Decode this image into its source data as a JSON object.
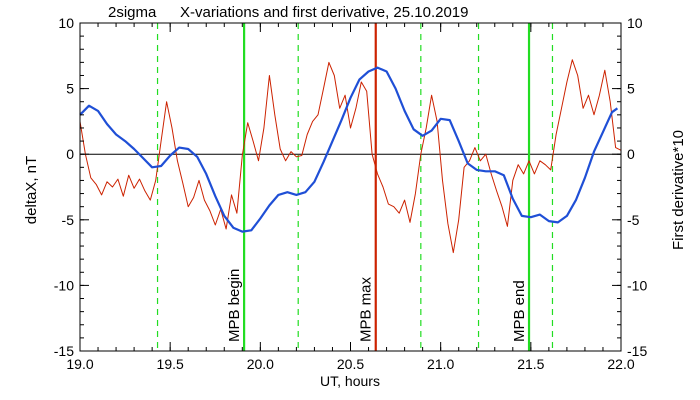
{
  "chart_data": {
    "type": "line",
    "header_left": "2sigma",
    "title": "X-variations and first derivative, 25.10.2019",
    "xlabel": "UT, hours",
    "ylabel_left": "deltaX, nT",
    "ylabel_right": "First derivative*10",
    "xlim": [
      19.0,
      22.0
    ],
    "ylim": [
      -15,
      10
    ],
    "x_ticks": [
      19.0,
      19.5,
      20.0,
      20.5,
      21.0,
      21.5,
      22.0
    ],
    "x_tick_labels": [
      "19.0",
      "19.5",
      "20.0",
      "20.5",
      "21.0",
      "21.5",
      "22.0"
    ],
    "y_ticks": [
      -15,
      -10,
      -5,
      0,
      5,
      10
    ],
    "y_tick_labels": [
      "-15",
      "-10",
      "-5",
      "0",
      "5",
      "10"
    ],
    "zero_line": 0,
    "colors": {
      "deltaX": "#1f4fd6",
      "derivative": "#cc2200",
      "mpb_max": "#cc2200",
      "mpb_bounds": "#22dd22",
      "sigma_lines": "#22dd22",
      "right_axis_label": "#cc2200",
      "left_axis_label": "#1f4fd6"
    },
    "vertical_markers": [
      {
        "x": 19.91,
        "label": "MPB begin",
        "kind": "mpb_bounds"
      },
      {
        "x": 20.64,
        "label": "MPB max",
        "kind": "mpb_max"
      },
      {
        "x": 21.49,
        "label": "MPB end",
        "kind": "mpb_bounds"
      }
    ],
    "sigma_lines_x": [
      19.43,
      20.21,
      20.89,
      21.21,
      21.62
    ],
    "series": [
      {
        "name": "deltaX",
        "axis": "left",
        "x": [
          19.0,
          19.05,
          19.1,
          19.15,
          19.2,
          19.25,
          19.3,
          19.35,
          19.4,
          19.45,
          19.5,
          19.55,
          19.6,
          19.65,
          19.7,
          19.75,
          19.8,
          19.85,
          19.9,
          19.95,
          20.0,
          20.05,
          20.1,
          20.15,
          20.2,
          20.25,
          20.3,
          20.35,
          20.4,
          20.45,
          20.5,
          20.55,
          20.6,
          20.65,
          20.7,
          20.75,
          20.8,
          20.85,
          20.9,
          20.95,
          21.0,
          21.05,
          21.1,
          21.15,
          21.2,
          21.25,
          21.3,
          21.35,
          21.4,
          21.45,
          21.5,
          21.55,
          21.6,
          21.65,
          21.7,
          21.75,
          21.8,
          21.85,
          21.9,
          21.95,
          21.98
        ],
        "y": [
          3.0,
          3.7,
          3.3,
          2.3,
          1.5,
          1.0,
          0.4,
          -0.3,
          -1.0,
          -0.9,
          -0.1,
          0.5,
          0.4,
          -0.2,
          -1.5,
          -3.2,
          -4.7,
          -5.6,
          -5.9,
          -5.8,
          -4.9,
          -3.9,
          -3.1,
          -2.9,
          -3.1,
          -2.9,
          -2.1,
          -0.6,
          1.0,
          2.6,
          4.3,
          5.7,
          6.3,
          6.6,
          6.3,
          5.0,
          3.3,
          1.9,
          1.4,
          1.8,
          2.7,
          2.6,
          1.0,
          -0.7,
          -1.2,
          -1.3,
          -1.3,
          -1.6,
          -3.4,
          -4.7,
          -4.8,
          -4.6,
          -5.1,
          -5.2,
          -4.7,
          -3.5,
          -1.8,
          0.2,
          1.7,
          3.2,
          3.5
        ]
      },
      {
        "name": "First derivative*10",
        "axis": "right",
        "x": [
          19.0,
          19.03,
          19.06,
          19.09,
          19.12,
          19.15,
          19.18,
          19.21,
          19.24,
          19.27,
          19.3,
          19.33,
          19.36,
          19.39,
          19.42,
          19.45,
          19.48,
          19.51,
          19.54,
          19.57,
          19.6,
          19.63,
          19.66,
          19.69,
          19.72,
          19.75,
          19.78,
          19.81,
          19.84,
          19.87,
          19.9,
          19.93,
          19.96,
          19.99,
          20.02,
          20.05,
          20.08,
          20.11,
          20.14,
          20.17,
          20.2,
          20.23,
          20.26,
          20.29,
          20.32,
          20.35,
          20.38,
          20.41,
          20.44,
          20.47,
          20.5,
          20.53,
          20.56,
          20.59,
          20.62,
          20.65,
          20.68,
          20.71,
          20.74,
          20.77,
          20.8,
          20.83,
          20.86,
          20.89,
          20.92,
          20.95,
          20.98,
          21.01,
          21.04,
          21.07,
          21.1,
          21.13,
          21.16,
          21.19,
          21.22,
          21.25,
          21.28,
          21.31,
          21.34,
          21.37,
          21.4,
          21.43,
          21.46,
          21.49,
          21.52,
          21.55,
          21.58,
          21.61,
          21.64,
          21.67,
          21.7,
          21.73,
          21.76,
          21.79,
          21.82,
          21.85,
          21.88,
          21.91,
          21.94,
          21.97,
          22.0
        ],
        "y": [
          2.5,
          0.0,
          -1.8,
          -2.3,
          -3.1,
          -2.1,
          -2.5,
          -1.9,
          -3.2,
          -1.6,
          -2.6,
          -1.9,
          -2.8,
          -3.5,
          -2.0,
          1.0,
          4.0,
          2.0,
          -0.5,
          -2.2,
          -4.0,
          -3.3,
          -2.0,
          -3.5,
          -4.3,
          -5.4,
          -4.2,
          -5.7,
          -3.1,
          -4.5,
          -0.1,
          2.4,
          1.0,
          -0.5,
          2.0,
          6.0,
          3.0,
          0.4,
          -0.5,
          0.2,
          -0.2,
          -0.1,
          1.5,
          2.5,
          3.0,
          5.0,
          7.0,
          6.0,
          3.5,
          4.5,
          2.0,
          3.5,
          5.5,
          4.8,
          0.0,
          -1.5,
          -2.5,
          -3.8,
          -4.0,
          -4.5,
          -3.5,
          -5.2,
          -3.0,
          0.0,
          2.0,
          4.5,
          2.5,
          -2.0,
          -5.3,
          -7.5,
          -5.0,
          -1.0,
          -0.5,
          0.5,
          -0.5,
          0.0,
          -1.5,
          -2.8,
          -4.0,
          -5.5,
          -2.0,
          -0.8,
          -1.5,
          -0.5,
          -1.5,
          -0.5,
          -0.8,
          -1.2,
          1.5,
          3.5,
          5.5,
          7.2,
          6.0,
          3.5,
          4.5,
          3.0,
          4.5,
          6.4,
          4.0,
          0.5,
          0.3
        ]
      }
    ]
  }
}
